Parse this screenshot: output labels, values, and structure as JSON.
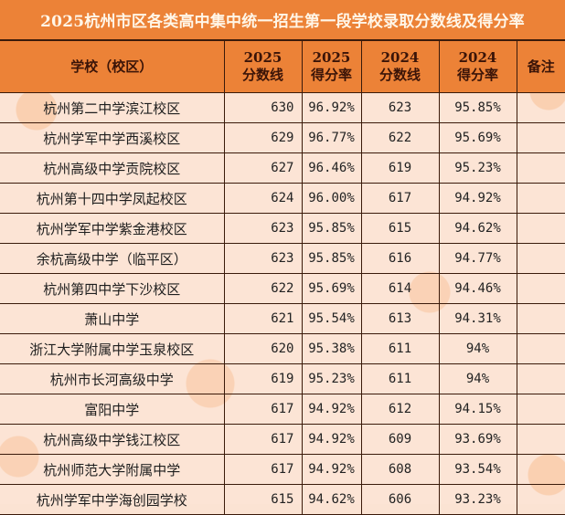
{
  "title": "2025杭州市区各类高中集中统一招生第一段学校录取分数线及得分率",
  "colors": {
    "header_bg": "#ec8237",
    "body_bg": "#fce4d5",
    "grid": "#3a1a0a"
  },
  "headers": [
    {
      "line1": "学校（校区）",
      "line2": ""
    },
    {
      "line1": "2025",
      "line2": "分数线"
    },
    {
      "line1": "2025",
      "line2": "得分率"
    },
    {
      "line1": "2024",
      "line2": "分数线"
    },
    {
      "line1": "2024",
      "line2": "得分率"
    },
    {
      "line1": "备注",
      "line2": ""
    }
  ],
  "rows": [
    {
      "school": "杭州第二中学滨江校区",
      "score_2025": "630",
      "rate_2025": "96.92%",
      "score_2024": "623",
      "rate_2024": "95.85%",
      "note": ""
    },
    {
      "school": "杭州学军中学西溪校区",
      "score_2025": "629",
      "rate_2025": "96.77%",
      "score_2024": "622",
      "rate_2024": "95.69%",
      "note": ""
    },
    {
      "school": "杭州高级中学贡院校区",
      "score_2025": "627",
      "rate_2025": "96.46%",
      "score_2024": "619",
      "rate_2024": "95.23%",
      "note": ""
    },
    {
      "school": "杭州第十四中学凤起校区",
      "score_2025": "624",
      "rate_2025": "96.00%",
      "score_2024": "617",
      "rate_2024": "94.92%",
      "note": ""
    },
    {
      "school": "杭州学军中学紫金港校区",
      "score_2025": "623",
      "rate_2025": "95.85%",
      "score_2024": "615",
      "rate_2024": "94.62%",
      "note": ""
    },
    {
      "school": "余杭高级中学（临平区）",
      "score_2025": "623",
      "rate_2025": "95.85%",
      "score_2024": "616",
      "rate_2024": "94.77%",
      "note": ""
    },
    {
      "school": "杭州第四中学下沙校区",
      "score_2025": "622",
      "rate_2025": "95.69%",
      "score_2024": "614",
      "rate_2024": "94.46%",
      "note": ""
    },
    {
      "school": "萧山中学",
      "score_2025": "621",
      "rate_2025": "95.54%",
      "score_2024": "613",
      "rate_2024": "94.31%",
      "note": ""
    },
    {
      "school": "浙江大学附属中学玉泉校区",
      "score_2025": "620",
      "rate_2025": "95.38%",
      "score_2024": "611",
      "rate_2024": "94%",
      "note": ""
    },
    {
      "school": "杭州市长河高级中学",
      "score_2025": "619",
      "rate_2025": "95.23%",
      "score_2024": "611",
      "rate_2024": "94%",
      "note": ""
    },
    {
      "school": "富阳中学",
      "score_2025": "617",
      "rate_2025": "94.92%",
      "score_2024": "612",
      "rate_2024": "94.15%",
      "note": ""
    },
    {
      "school": "杭州高级中学钱江校区",
      "score_2025": "617",
      "rate_2025": "94.92%",
      "score_2024": "609",
      "rate_2024": "93.69%",
      "note": ""
    },
    {
      "school": "杭州师范大学附属中学",
      "score_2025": "617",
      "rate_2025": "94.92%",
      "score_2024": "608",
      "rate_2024": "93.54%",
      "note": ""
    },
    {
      "school": "杭州学军中学海创园学校",
      "score_2025": "615",
      "rate_2025": "94.62%",
      "score_2024": "606",
      "rate_2024": "93.23%",
      "note": ""
    }
  ]
}
